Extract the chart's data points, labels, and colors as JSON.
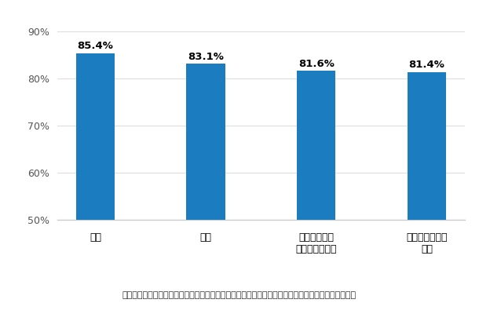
{
  "categories": [
    "頭痛",
    "不眠",
    "目のかすみ・\n視野が狭くなる",
    "ひどい倦怨感・\n疲労"
  ],
  "values": [
    85.4,
    83.1,
    81.6,
    81.4
  ],
  "bar_color": "#1b7dc0",
  "ylim": [
    50,
    90
  ],
  "yticks": [
    50,
    60,
    70,
    80,
    90
  ],
  "ytick_labels": [
    "50%",
    "60%",
    "70%",
    "80%",
    "90%"
  ],
  "value_labels": [
    "85.4%",
    "83.1%",
    "81.6%",
    "81.4%"
  ],
  "caption": "《　病院に行かない人の割合（半年以上の長期不調症状保有認識者の「最も気になる症状別」）　》",
  "background_color": "#ffffff",
  "plot_background": "#ffffff",
  "bar_width": 0.35,
  "gridline_color": "#dddddd",
  "spine_color": "#cccccc"
}
